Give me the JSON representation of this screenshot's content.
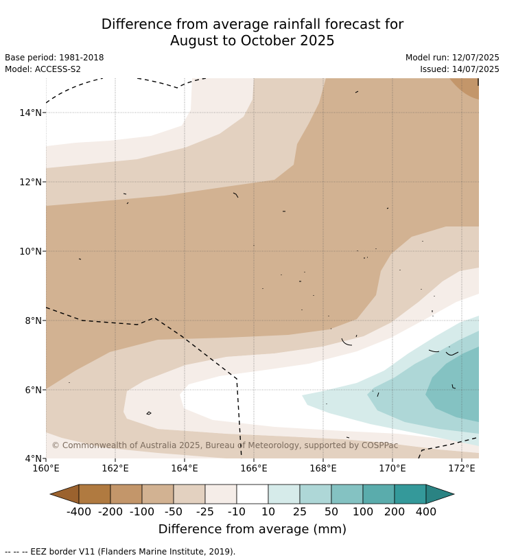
{
  "title_line1": "Difference from average rainfall forecast for",
  "title_line2": "August to October 2025",
  "base_period": "Base period: 1981-2018",
  "model": "Model: ACCESS-S2",
  "model_run": "Model run: 12/07/2025",
  "issued": "Issued: 14/07/2025",
  "map": {
    "lon_labels": [
      "160°E",
      "162°E",
      "164°E",
      "166°E",
      "168°E",
      "170°E",
      "172°E"
    ],
    "lat_labels": [
      "14°N",
      "12°N",
      "10°N",
      "8°N",
      "6°N",
      "4°N"
    ],
    "lon_range": [
      160,
      172.5
    ],
    "lat_range": [
      4,
      15
    ],
    "copyright": "© Commonwealth of Australia 2025, Bureau of Meteorology, supported by COSPPac"
  },
  "colorbar": {
    "title": "Difference from average (mm)",
    "ticks": [
      "-400",
      "-200",
      "-100",
      "-50",
      "-25",
      "-10",
      "10",
      "25",
      "50",
      "100",
      "200",
      "400"
    ],
    "colors": [
      "#b07a40",
      "#c3966a",
      "#d2b292",
      "#e3d1c0",
      "#f5ede8",
      "#ffffff",
      "#d6ebea",
      "#aed7d7",
      "#84c2c2",
      "#5aacac",
      "#34999a"
    ],
    "under_color": "#9b622e",
    "over_color": "#2a8383"
  },
  "footnote": "-- -- -- EEZ border V11 (Flanders Marine Institute, 2019)."
}
